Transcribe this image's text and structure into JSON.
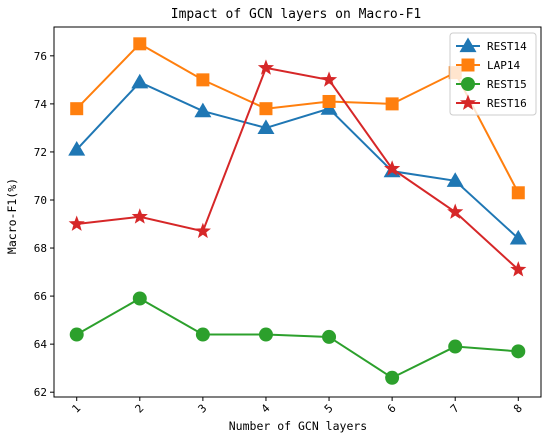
{
  "chart_data": {
    "type": "line",
    "title": "Impact of GCN layers on Macro-F1",
    "xlabel": "Number of GCN layers",
    "ylabel": "Macro-F1(%)",
    "x": [
      1,
      2,
      3,
      4,
      5,
      6,
      7,
      8
    ],
    "x_tick_labels": [
      "1",
      "2",
      "3",
      "4",
      "5",
      "6",
      "7",
      "8"
    ],
    "ylim": [
      61.8,
      77.2
    ],
    "y_ticks": [
      62,
      64,
      66,
      68,
      70,
      72,
      74,
      76
    ],
    "y_tick_labels": [
      "62",
      "64",
      "66",
      "68",
      "70",
      "72",
      "74",
      "76"
    ],
    "grid": false,
    "legend_position": "top-right",
    "series": [
      {
        "name": "REST14",
        "color": "#1f77b4",
        "marker": "triangle",
        "values": [
          72.1,
          74.9,
          73.7,
          73.0,
          73.8,
          71.2,
          70.8,
          68.4
        ]
      },
      {
        "name": "LAP14",
        "color": "#ff7f0e",
        "marker": "square",
        "values": [
          73.8,
          76.5,
          75.0,
          73.8,
          74.1,
          74.0,
          75.3,
          70.3
        ]
      },
      {
        "name": "REST15",
        "color": "#2ca02c",
        "marker": "circle",
        "values": [
          64.4,
          65.9,
          64.4,
          64.4,
          64.3,
          62.6,
          63.9,
          63.7
        ]
      },
      {
        "name": "REST16",
        "color": "#d62728",
        "marker": "star",
        "values": [
          69.0,
          69.3,
          68.7,
          75.5,
          75.0,
          71.3,
          69.5,
          67.1
        ]
      }
    ]
  }
}
